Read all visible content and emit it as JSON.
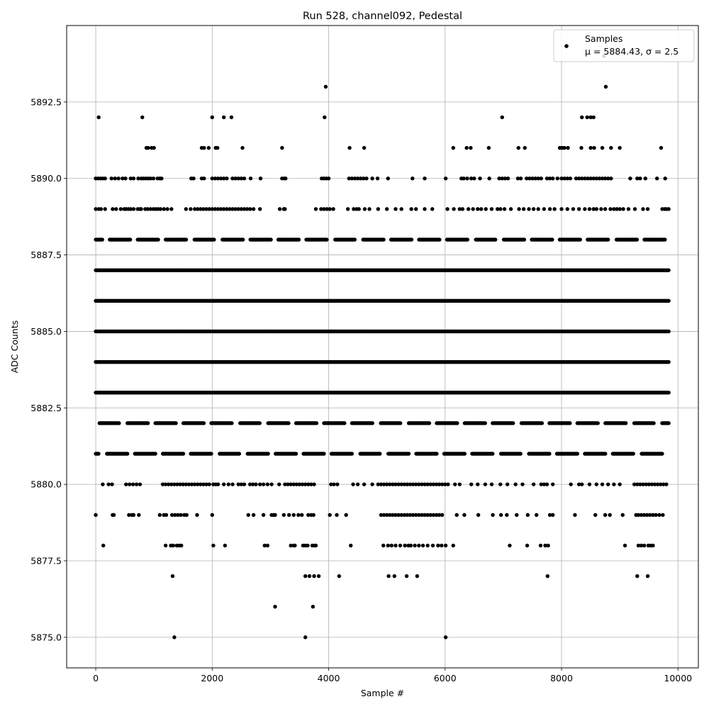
{
  "chart_data": {
    "type": "scatter",
    "title": "Run 528, channel092, Pedestal",
    "xlabel": "Sample #",
    "ylabel": "ADC Counts",
    "xlim": [
      -500,
      10350
    ],
    "ylim": [
      5874.0,
      5895.0
    ],
    "xticks": [
      0,
      2000,
      4000,
      6000,
      8000,
      10000
    ],
    "xtick_labels": [
      "0",
      "2000",
      "4000",
      "6000",
      "8000",
      "10000"
    ],
    "yticks": [
      5875.0,
      5877.5,
      5880.0,
      5882.5,
      5885.0,
      5887.5,
      5890.0,
      5892.5
    ],
    "ytick_labels": [
      "5875.0",
      "5877.5",
      "5880.0",
      "5882.5",
      "5885.0",
      "5887.5",
      "5890.0",
      "5892.5"
    ],
    "grid": true,
    "legend_position": "top-right",
    "marker_color": "#000000",
    "legend": {
      "series_label": "Samples",
      "stats_label": "μ = 5884.43, σ = 2.5"
    },
    "series": [
      {
        "name": "Samples",
        "sample_range": [
          0,
          9840
        ],
        "mean": 5884.43,
        "sigma": 2.5,
        "dense_levels": [
          5881,
          5882,
          5883,
          5884,
          5885,
          5886,
          5887,
          5888
        ],
        "sparse_levels": [
          {
            "y": 5880,
            "x": [
              120,
              220,
              280,
              520,
              580,
              640,
              700,
              760,
              1150,
              1200,
              1250,
              1300,
              1350,
              1400,
              1450,
              1500,
              1550,
              1600,
              1650,
              1700,
              1750,
              1800,
              1850,
              1900,
              1950,
              2020,
              2060,
              2100,
              2200,
              2280,
              2350,
              2450,
              2500,
              2550,
              2650,
              2700,
              2750,
              2820,
              2880,
              2950,
              3020,
              3150,
              3250,
              3300,
              3350,
              3400,
              3450,
              3500,
              3550,
              3600,
              3650,
              3700,
              3750,
              4040,
              4090,
              4150,
              4420,
              4500,
              4610,
              4750,
              4850,
              4900,
              4950,
              5000,
              5050,
              5100,
              5150,
              5200,
              5250,
              5300,
              5350,
              5400,
              5450,
              5500,
              5550,
              5600,
              5650,
              5700,
              5750,
              5800,
              5850,
              5900,
              5950,
              6000,
              6050,
              6170,
              6250,
              6450,
              6560,
              6690,
              6800,
              6950,
              7070,
              7210,
              7330,
              7520,
              7650,
              7700,
              7750,
              7850,
              8160,
              8300,
              8350,
              8480,
              8600,
              8700,
              8800,
              8900,
              9000,
              9250,
              9300,
              9350,
              9400,
              9450,
              9500,
              9550,
              9600,
              9650,
              9700,
              9750,
              9800
            ]
          },
          {
            "y": 5879,
            "x": [
              0,
              290,
              310,
              570,
              620,
              650,
              740,
              1100,
              1170,
              1210,
              1310,
              1360,
              1410,
              1460,
              1520,
              1560,
              1740,
              2000,
              2620,
              2710,
              2880,
              3020,
              3050,
              3080,
              3230,
              3320,
              3400,
              3480,
              3540,
              3650,
              3700,
              3740,
              4020,
              4140,
              4300,
              4900,
              4950,
              5000,
              5050,
              5100,
              5150,
              5200,
              5250,
              5300,
              5350,
              5400,
              5450,
              5500,
              5550,
              5600,
              5650,
              5700,
              5750,
              5800,
              5850,
              5900,
              5950,
              6200,
              6330,
              6570,
              6820,
              6960,
              7060,
              7230,
              7420,
              7570,
              7800,
              7850,
              8230,
              8580,
              8750,
              8830,
              9050,
              9280,
              9320,
              9370,
              9420,
              9470,
              9520,
              9570,
              9620,
              9680,
              9740
            ]
          },
          {
            "y": 5878,
            "x": [
              130,
              1200,
              1290,
              1330,
              1390,
              1430,
              1470,
              2020,
              2220,
              2900,
              2950,
              3350,
              3400,
              3420,
              3560,
              3600,
              3640,
              3720,
              3760,
              3780,
              4380,
              4940,
              5020,
              5080,
              5150,
              5230,
              5310,
              5370,
              5410,
              5480,
              5550,
              5620,
              5700,
              5790,
              5880,
              5940,
              6010,
              6140,
              7110,
              7410,
              7640,
              7720,
              7770,
              9090,
              9320,
              9370,
              9420,
              9490,
              9530,
              9570
            ]
          },
          {
            "y": 5877,
            "x": [
              1320,
              3600,
              3670,
              3750,
              3830,
              4180,
              5030,
              5130,
              5340,
              5520,
              7760,
              9300,
              9480
            ]
          },
          {
            "y": 5876,
            "x": [
              3080,
              3730
            ]
          },
          {
            "y": 5875,
            "x": [
              1350,
              3600,
              6010
            ]
          },
          {
            "y": 5889,
            "x": [
              0,
              50,
              90,
              160,
              290,
              350,
              430,
              490,
              520,
              560,
              600,
              650,
              720,
              760,
              780,
              850,
              890,
              940,
              990,
              1030,
              1070,
              1110,
              1170,
              1230,
              1300,
              1550,
              1630,
              1700,
              1750,
              1800,
              1850,
              1900,
              1950,
              2000,
              2050,
              2100,
              2150,
              2200,
              2250,
              2300,
              2350,
              2400,
              2450,
              2500,
              2550,
              2600,
              2650,
              2710,
              2820,
              3160,
              3230,
              3250,
              3780,
              3870,
              3920,
              3970,
              4020,
              4080,
              4330,
              4430,
              4480,
              4520,
              4620,
              4700,
              4850,
              5000,
              5150,
              5250,
              5420,
              5500,
              5650,
              5780,
              6040,
              6150,
              6250,
              6300,
              6400,
              6480,
              6560,
              6620,
              6700,
              6800,
              6900,
              6950,
              7020,
              7130,
              7270,
              7350,
              7440,
              7520,
              7600,
              7700,
              7800,
              7880,
              8000,
              8100,
              8200,
              8300,
              8400,
              8480,
              8550,
              8600,
              8680,
              8750,
              8840,
              8900,
              8950,
              9000,
              9060,
              9150,
              9260,
              9400,
              9480,
              9730,
              9770,
              9800,
              9840
            ]
          },
          {
            "y": 5890,
            "x": [
              0,
              40,
              80,
              120,
              160,
              270,
              330,
              390,
              460,
              510,
              600,
              650,
              730,
              780,
              820,
              860,
              900,
              940,
              990,
              1060,
              1100,
              1130,
              1640,
              1680,
              1820,
              1860,
              2000,
              2050,
              2100,
              2150,
              2200,
              2250,
              2350,
              2400,
              2450,
              2500,
              2550,
              2660,
              2830,
              3200,
              3240,
              3260,
              3880,
              3920,
              3960,
              4000,
              4350,
              4400,
              4450,
              4500,
              4550,
              4600,
              4650,
              4750,
              4840,
              5020,
              5440,
              5650,
              6010,
              6280,
              6320,
              6380,
              6450,
              6500,
              6600,
              6760,
              6930,
              6980,
              7030,
              7080,
              7250,
              7300,
              7400,
              7450,
              7500,
              7550,
              7600,
              7650,
              7750,
              7800,
              7850,
              7930,
              8000,
              8050,
              8100,
              8150,
              8250,
              8300,
              8350,
              8400,
              8450,
              8500,
              8550,
              8600,
              8650,
              8700,
              8750,
              8800,
              8850,
              9180,
              9300,
              9350,
              9440,
              9640,
              9780
            ]
          },
          {
            "y": 5891,
            "x": [
              870,
              900,
              960,
              1000,
              1820,
              1860,
              1940,
              2060,
              2090,
              2520,
              3200,
              4360,
              4610,
              6140,
              6370,
              6440,
              6750,
              7260,
              7370,
              7970,
              8000,
              8020,
              8050,
              8110,
              8340,
              8500,
              8560,
              8700,
              8850,
              9000,
              9710
            ]
          },
          {
            "y": 5892,
            "x": [
              50,
              800,
              2000,
              2200,
              2330,
              3930,
              6980,
              8350,
              8440,
              8500,
              8550
            ]
          },
          {
            "y": 5893,
            "x": [
              3950,
              8760
            ]
          },
          {
            "y": 5894,
            "x": [
              8730
            ]
          }
        ]
      }
    ]
  }
}
